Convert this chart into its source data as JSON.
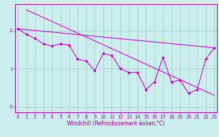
{
  "background_color": "#cceeee",
  "line_color": "#cc00cc",
  "trend_color": "#cc00cc",
  "x_data": [
    0,
    1,
    2,
    3,
    4,
    5,
    6,
    7,
    8,
    9,
    10,
    11,
    12,
    13,
    14,
    15,
    16,
    17,
    18,
    19,
    20,
    21,
    22,
    23
  ],
  "y_zigzag": [
    2.05,
    1.9,
    1.8,
    1.65,
    1.6,
    1.65,
    1.62,
    1.25,
    1.2,
    0.95,
    1.4,
    1.35,
    1.0,
    0.9,
    0.9,
    0.45,
    0.65,
    1.3,
    0.65,
    0.7,
    0.35,
    0.45,
    1.25,
    1.55
  ],
  "trend1_x": [
    0,
    23
  ],
  "trend1_y": [
    2.05,
    1.55
  ],
  "trend2_x": [
    1,
    23
  ],
  "trend2_y": [
    2.55,
    0.3
  ],
  "xlim": [
    -0.3,
    23.3
  ],
  "ylim": [
    -0.15,
    2.7
  ],
  "xticks": [
    0,
    1,
    2,
    3,
    4,
    5,
    6,
    7,
    8,
    9,
    10,
    11,
    12,
    13,
    14,
    15,
    16,
    17,
    18,
    19,
    20,
    21,
    22,
    23
  ],
  "yticks": [
    0,
    1,
    2
  ],
  "grid_color": "#99ccbb",
  "font_color": "#990099",
  "xlabel": "Windchill (Refroidissement éolien,°C)",
  "tick_fontsize": 5.0,
  "label_fontsize": 5.5
}
